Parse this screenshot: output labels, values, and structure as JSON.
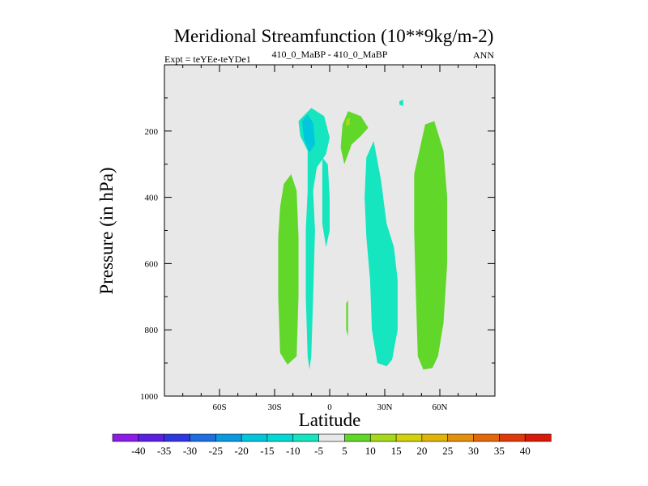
{
  "chart_data": {
    "type": "contour",
    "title": "Meridional Streamfunction (10**9kg/m-2)",
    "subtitle_left": "Expt = teYEe-teYDe1",
    "subtitle_center": "410_0_MaBP - 410_0_MaBP",
    "subtitle_right": "ANN",
    "xlabel": "Latitude",
    "ylabel": "Pressure (in hPa)",
    "xlim": [
      -90,
      90
    ],
    "ylim": [
      1000,
      0
    ],
    "x_ticks": [
      {
        "value": -60,
        "label": "60S"
      },
      {
        "value": -30,
        "label": "30S"
      },
      {
        "value": 0,
        "label": "0"
      },
      {
        "value": 30,
        "label": "30N"
      },
      {
        "value": 60,
        "label": "60N"
      }
    ],
    "y_ticks": [
      {
        "value": 200,
        "label": "200"
      },
      {
        "value": 400,
        "label": "400"
      },
      {
        "value": 600,
        "label": "600"
      },
      {
        "value": 800,
        "label": "800"
      },
      {
        "value": 1000,
        "label": "1000"
      }
    ],
    "regions": [
      {
        "name": "sh-subtropical-cell",
        "level": 5,
        "color": "#61d72a",
        "points": [
          [
            -27,
            430
          ],
          [
            -25,
            360
          ],
          [
            -21,
            330
          ],
          [
            -18,
            380
          ],
          [
            -17,
            520
          ],
          [
            -17,
            700
          ],
          [
            -18,
            880
          ],
          [
            -23,
            905
          ],
          [
            -27,
            870
          ],
          [
            -28,
            700
          ],
          [
            -28,
            520
          ]
        ]
      },
      {
        "name": "sh-upper-negative-cell",
        "level": -10,
        "color": "#15e6c0",
        "points": [
          [
            -17,
            170
          ],
          [
            -10,
            130
          ],
          [
            -3,
            155
          ],
          [
            0,
            220
          ],
          [
            -2,
            270
          ],
          [
            -7,
            310
          ],
          [
            -9,
            380
          ],
          [
            -8,
            500
          ],
          [
            -9,
            700
          ],
          [
            -10,
            880
          ],
          [
            -11,
            920
          ],
          [
            -12,
            880
          ],
          [
            -13,
            700
          ],
          [
            -13,
            500
          ],
          [
            -12,
            380
          ],
          [
            -12,
            260
          ],
          [
            -16,
            215
          ]
        ]
      },
      {
        "name": "sh-upper-core",
        "level": -15,
        "color": "#02c6dc",
        "points": [
          [
            -15,
            170
          ],
          [
            -12,
            150
          ],
          [
            -9,
            175
          ],
          [
            -8,
            240
          ],
          [
            -11,
            265
          ],
          [
            -14,
            225
          ]
        ]
      },
      {
        "name": "equatorial-negative-strip",
        "level": -10,
        "color": "#15e6c0",
        "points": [
          [
            -4,
            280
          ],
          [
            -1,
            300
          ],
          [
            0,
            400
          ],
          [
            0,
            500
          ],
          [
            -2,
            550
          ],
          [
            -4,
            480
          ],
          [
            -4,
            380
          ]
        ]
      },
      {
        "name": "upper-positive-cell",
        "level": 5,
        "color": "#61d72a",
        "points": [
          [
            7,
            180
          ],
          [
            10,
            140
          ],
          [
            17,
            155
          ],
          [
            21,
            190
          ],
          [
            17,
            215
          ],
          [
            12,
            240
          ],
          [
            8,
            300
          ],
          [
            6,
            250
          ]
        ]
      },
      {
        "name": "upper-positive-core",
        "level": 10,
        "color": "#a6d91c",
        "points": [
          [
            9,
            165
          ],
          [
            11,
            160
          ],
          [
            11,
            180
          ],
          [
            9,
            185
          ]
        ]
      },
      {
        "name": "tropical-upper-speck",
        "level": -10,
        "color": "#15e6c0",
        "points": [
          [
            38,
            110
          ],
          [
            40,
            105
          ],
          [
            40,
            125
          ],
          [
            38,
            120
          ]
        ]
      },
      {
        "name": "tropical-lower-speck",
        "level": 5,
        "color": "#61d72a",
        "points": [
          [
            9,
            720
          ],
          [
            10,
            710
          ],
          [
            10,
            820
          ],
          [
            9,
            800
          ]
        ]
      },
      {
        "name": "nh-negative-cell",
        "level": -10,
        "color": "#15e6c0",
        "points": [
          [
            20,
            280
          ],
          [
            24,
            230
          ],
          [
            28,
            350
          ],
          [
            31,
            480
          ],
          [
            35,
            550
          ],
          [
            37,
            650
          ],
          [
            37,
            800
          ],
          [
            34,
            890
          ],
          [
            31,
            910
          ],
          [
            26,
            900
          ],
          [
            23,
            800
          ],
          [
            22,
            650
          ],
          [
            20,
            520
          ],
          [
            19,
            400
          ]
        ]
      },
      {
        "name": "nh-positive-cell",
        "level": 5,
        "color": "#61d72a",
        "points": [
          [
            46,
            330
          ],
          [
            52,
            180
          ],
          [
            57,
            170
          ],
          [
            62,
            260
          ],
          [
            64,
            400
          ],
          [
            64,
            600
          ],
          [
            62,
            780
          ],
          [
            59,
            880
          ],
          [
            56,
            915
          ],
          [
            51,
            920
          ],
          [
            48,
            880
          ],
          [
            47,
            700
          ],
          [
            46,
            500
          ]
        ]
      }
    ],
    "colorbar": {
      "levels": [
        "-40",
        "-35",
        "-30",
        "-25",
        "-20",
        "-15",
        "-10",
        "-5",
        "5",
        "10",
        "15",
        "20",
        "25",
        "30",
        "35",
        "40"
      ],
      "colors": [
        "#8b1de6",
        "#5a1fe0",
        "#2f36e0",
        "#1d6ee0",
        "#0a9ae0",
        "#02c6dc",
        "#03d9d4",
        "#15e6c0",
        "#e8e8e8",
        "#61d72a",
        "#a6d91c",
        "#d2d10c",
        "#e0b40a",
        "#e3900c",
        "#e3680c",
        "#e03a0a",
        "#d91a06"
      ]
    }
  }
}
